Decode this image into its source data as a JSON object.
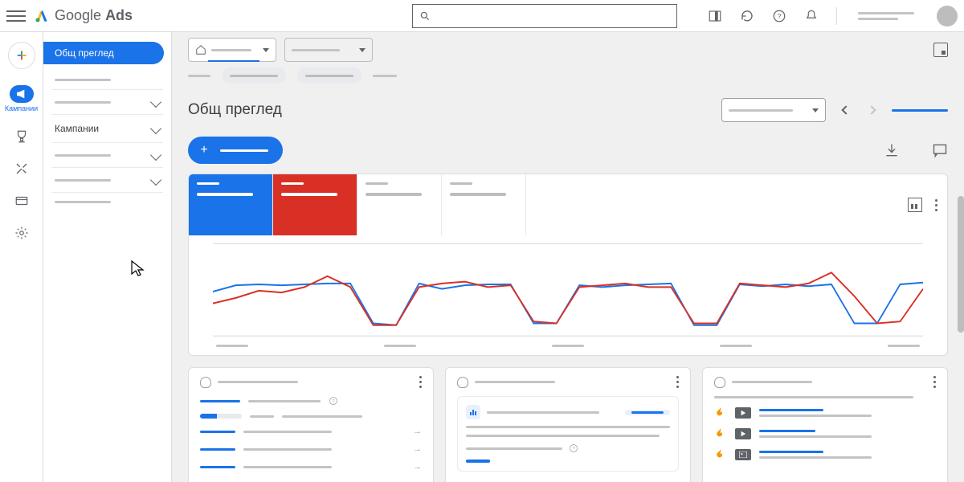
{
  "brand": {
    "name": "Google",
    "product": "Ads"
  },
  "sidebar_chip": "Общ преглед",
  "sidebar_campaigns": "Кампании",
  "rail_active_label": "Кампании",
  "page_title": "Общ преглед",
  "colors": {
    "blue": "#1a73e8",
    "red": "#d93025",
    "grey": "#bdbdbd",
    "text": "#3c4043",
    "border": "#dadce0",
    "bg": "#f0f0f0",
    "logo_y": "#fbbc04",
    "logo_g": "#34a853"
  },
  "chart": {
    "series": [
      {
        "color": "#1a73e8",
        "points": [
          55,
          48,
          47,
          48,
          47,
          46,
          46,
          90,
          92,
          46,
          52,
          48,
          47,
          47,
          90,
          90,
          48,
          50,
          48,
          47,
          46,
          92,
          92,
          47,
          49,
          47,
          49,
          47,
          90,
          90,
          47,
          45
        ]
      },
      {
        "color": "#d93025",
        "points": [
          68,
          62,
          54,
          56,
          50,
          38,
          50,
          92,
          92,
          50,
          46,
          44,
          50,
          48,
          88,
          90,
          50,
          48,
          46,
          50,
          50,
          90,
          90,
          46,
          48,
          50,
          46,
          34,
          60,
          90,
          88,
          52
        ]
      }
    ]
  }
}
